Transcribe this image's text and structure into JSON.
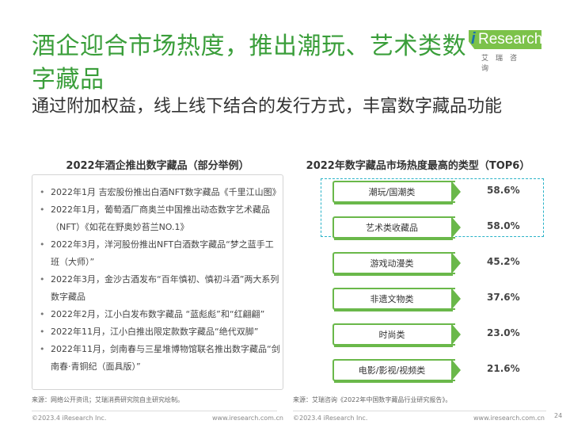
{
  "title": {
    "main": "酒企迎合市场热度，推出潮玩、艺术类数字藏品",
    "sub": "通过附加权益，线上线下结合的发行方式，丰富数字藏品功能"
  },
  "logo": {
    "i": "i",
    "text": "Research",
    "cn": "艾瑞咨询"
  },
  "left_panel": {
    "heading": "2022年酒企推出数字藏品（部分举例）",
    "items": [
      "2022年1月 吉宏股份推出白酒NFT数字藏品《千里江山图》",
      "2022年1月，葡萄酒厂商奥兰中国推出动态数字艺术藏品（NFT）《如花在野奥妙苔兰NO.1》",
      "2022年3月，洋河股份推出NFT白酒数字藏品“梦之蓝手工班（大师）”",
      "2022年3月，金沙古酒发布“百年慎初、慎初斗酒”两大系列数字藏品",
      "2022年2月，江小白发布数字藏品 “蓝彪彪”和“红翩翩”",
      "2022年11月，江小白推出限定款数字藏品“绝代双脚”",
      "2022年11月，剑南春与三星堆博物馆联名推出数字藏品“剑南春·青铜纪（面具版）”"
    ]
  },
  "right_panel": {
    "heading": "2022年数字藏品市场热度最高的类型（TOP6）"
  },
  "chart_data": {
    "type": "bar",
    "title": "2022年数字藏品市场热度最高的类型（TOP6）",
    "categories": [
      "潮玩/国潮类",
      "艺术类收藏品",
      "游戏动漫类",
      "非遗文物类",
      "时尚类",
      "电影/影视/视频类"
    ],
    "values": [
      58.6,
      58.0,
      45.2,
      37.6,
      23.0,
      21.6
    ],
    "value_labels": [
      "58.6%",
      "58.0%",
      "45.2%",
      "37.6%",
      "23.0%",
      "21.6%"
    ],
    "highlighted": [
      0,
      1
    ],
    "color": "#6ab84a",
    "highlight_color": "#2ab3c8"
  },
  "sources": {
    "left": "来源：网络公开资讯；艾瑞消费研究院自主研究绘制。",
    "right": "来源：艾瑞咨询《2022年中国数字藏品行业研究报告》。"
  },
  "footer": {
    "copyright_left": "©2023.4 iResearch Inc.",
    "url_left": "www.iresearch.com.cn",
    "copyright_right": "©2023.4 iResearch Inc.",
    "url_right": "www.iresearch.com.cn",
    "page": "24"
  }
}
